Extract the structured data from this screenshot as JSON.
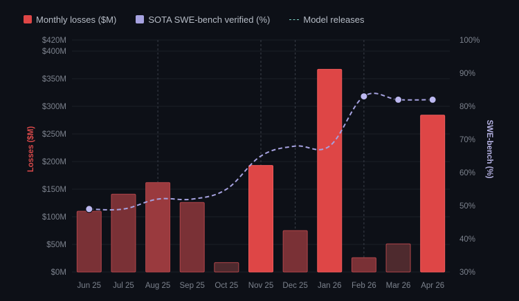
{
  "legend": {
    "losses": "Monthly losses ($M)",
    "swe": "SOTA SWE-bench verified (%)",
    "releases": "Model releases"
  },
  "colors": {
    "background": "#0d1017",
    "bar_high": "#de4646",
    "bar_low": "#7a3136",
    "bar_dark": "#4e2a2e",
    "swe_line": "#a6a2e0",
    "release_line": "#3a3f48",
    "left_axis": "#d8494a",
    "right_axis": "#b3b0e0"
  },
  "chart_data": {
    "type": "bar",
    "categories": [
      "Jun 25",
      "Jul 25",
      "Aug 25",
      "Sep 25",
      "Oct 25",
      "Nov 25",
      "Dec 25",
      "Jan 26",
      "Feb 26",
      "Mar 26",
      "Apr 26"
    ],
    "series": [
      {
        "name": "Monthly losses ($M)",
        "type": "bar",
        "axis": "left",
        "values": [
          110,
          141,
          162,
          126,
          17,
          193,
          75,
          367,
          26,
          51,
          284
        ],
        "shade": [
          "low",
          "low",
          "mid",
          "low",
          "dark",
          "high",
          "low",
          "high",
          "low",
          "dark",
          "high"
        ]
      },
      {
        "name": "SOTA SWE-bench verified (%)",
        "type": "line",
        "axis": "right",
        "values": [
          49,
          49,
          52,
          52,
          55,
          65,
          68,
          68,
          83,
          82,
          82
        ],
        "markers_at": [
          "Jun 25",
          "Feb 26",
          "Mar 26",
          "Apr 26"
        ]
      }
    ],
    "release_markers": [
      "Aug 25",
      "Nov 25",
      "Dec 25",
      "Feb 26"
    ],
    "ylabel": "Losses ($M)",
    "ylim": [
      0,
      420
    ],
    "yticks": [
      "$0M",
      "$50M",
      "$100M",
      "$150M",
      "$200M",
      "$250M",
      "$300M",
      "$350M",
      "$400M",
      "$420M"
    ],
    "ytick_values": [
      0,
      50,
      100,
      150,
      200,
      250,
      300,
      350,
      400,
      420
    ],
    "y2label": "SWE-bench (%)",
    "y2lim": [
      30,
      100
    ],
    "y2ticks": [
      "30%",
      "40%",
      "50%",
      "60%",
      "70%",
      "80%",
      "90%",
      "100%"
    ],
    "y2tick_values": [
      30,
      40,
      50,
      60,
      70,
      80,
      90,
      100
    ],
    "grid": true,
    "legend_position": "top-left"
  }
}
